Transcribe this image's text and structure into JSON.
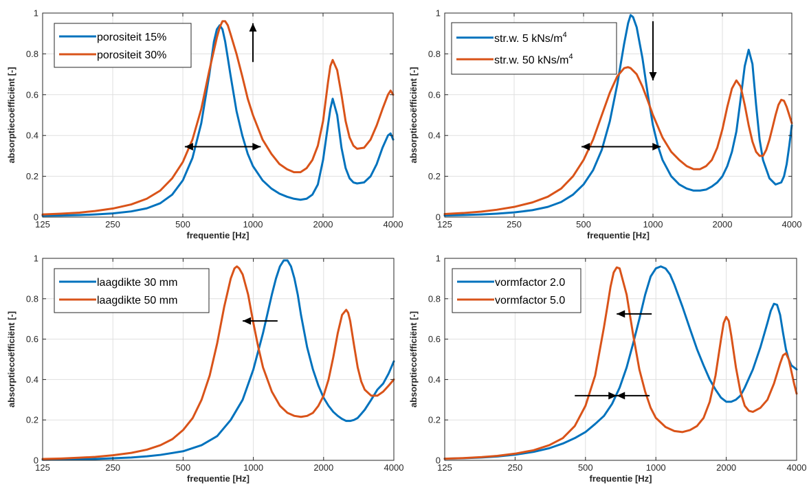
{
  "colors": {
    "blue": "#0072BD",
    "orange": "#D95319",
    "axis": "#262626",
    "grid": "#DFDFDF",
    "arrow": "#000000"
  },
  "chart_data": [
    {
      "type": "line",
      "xscale": "log",
      "xlim": [
        125,
        4000
      ],
      "ylim": [
        0,
        1
      ],
      "xticks": [
        "125",
        "250",
        "500",
        "1000",
        "2000",
        "4000"
      ],
      "xtick_values": [
        125,
        250,
        500,
        1000,
        2000,
        4000
      ],
      "yticks": [
        "0",
        "0.2",
        "0.4",
        "0.6",
        "0.8",
        "1"
      ],
      "ytick_values": [
        0,
        0.2,
        0.4,
        0.6,
        0.8,
        1
      ],
      "xlabel": "frequentie [Hz]",
      "ylabel": "absorptiecoëfficiënt [-]",
      "grid": true,
      "legend": "top-left",
      "series": [
        {
          "name": "porositeit 15%",
          "color": "blue",
          "x": [
            125,
            150,
            180,
            210,
            250,
            300,
            350,
            400,
            450,
            500,
            550,
            600,
            650,
            680,
            700,
            720,
            740,
            760,
            780,
            800,
            850,
            900,
            950,
            1000,
            1100,
            1200,
            1300,
            1400,
            1500,
            1600,
            1700,
            1800,
            1900,
            2000,
            2100,
            2150,
            2200,
            2300,
            2400,
            2500,
            2600,
            2700,
            2800,
            3000,
            3200,
            3400,
            3600,
            3800,
            3900,
            4000
          ],
          "y": [
            0.007,
            0.008,
            0.01,
            0.013,
            0.018,
            0.028,
            0.043,
            0.068,
            0.11,
            0.18,
            0.29,
            0.46,
            0.7,
            0.86,
            0.92,
            0.94,
            0.92,
            0.86,
            0.78,
            0.7,
            0.52,
            0.4,
            0.31,
            0.25,
            0.18,
            0.14,
            0.115,
            0.1,
            0.09,
            0.085,
            0.09,
            0.11,
            0.16,
            0.28,
            0.45,
            0.53,
            0.58,
            0.5,
            0.34,
            0.24,
            0.19,
            0.17,
            0.165,
            0.17,
            0.2,
            0.26,
            0.34,
            0.4,
            0.41,
            0.38
          ]
        },
        {
          "name": "porositeit 30%",
          "color": "orange",
          "x": [
            125,
            150,
            180,
            210,
            250,
            300,
            350,
            400,
            450,
            500,
            550,
            600,
            650,
            700,
            720,
            740,
            760,
            780,
            800,
            850,
            900,
            950,
            1000,
            1100,
            1200,
            1300,
            1400,
            1500,
            1600,
            1700,
            1800,
            1900,
            2000,
            2100,
            2150,
            2200,
            2300,
            2400,
            2500,
            2600,
            2700,
            2800,
            3000,
            3200,
            3400,
            3600,
            3800,
            3900,
            4000
          ],
          "y": [
            0.013,
            0.017,
            0.022,
            0.03,
            0.042,
            0.062,
            0.09,
            0.13,
            0.19,
            0.27,
            0.38,
            0.53,
            0.72,
            0.88,
            0.93,
            0.96,
            0.96,
            0.94,
            0.9,
            0.8,
            0.69,
            0.58,
            0.5,
            0.38,
            0.31,
            0.26,
            0.235,
            0.22,
            0.22,
            0.24,
            0.28,
            0.35,
            0.47,
            0.66,
            0.74,
            0.77,
            0.72,
            0.6,
            0.47,
            0.39,
            0.35,
            0.335,
            0.34,
            0.38,
            0.45,
            0.53,
            0.6,
            0.62,
            0.6
          ]
        }
      ],
      "arrows": [
        {
          "x1": 1000,
          "y1": 0.76,
          "x2": 1000,
          "y2": 0.95
        }
      ],
      "double_arrows": [
        {
          "x1": 510,
          "x2": 1080,
          "y": 0.345
        }
      ]
    },
    {
      "type": "line",
      "xscale": "log",
      "xlim": [
        125,
        4000
      ],
      "ylim": [
        0,
        1
      ],
      "xticks": [
        "125",
        "250",
        "500",
        "1000",
        "2000",
        "4000"
      ],
      "xtick_values": [
        125,
        250,
        500,
        1000,
        2000,
        4000
      ],
      "yticks": [
        "0",
        "0.2",
        "0.4",
        "0.6",
        "0.8",
        "1"
      ],
      "ytick_values": [
        0,
        0.2,
        0.4,
        0.6,
        0.8,
        1
      ],
      "xlabel": "frequentie [Hz]",
      "ylabel": "absorptiecoëfficiënt [-]",
      "grid": true,
      "legend": "top-left",
      "series": [
        {
          "name_parts": [
            "str.w. 5 kNs/m",
            "4"
          ],
          "color": "blue",
          "x": [
            125,
            150,
            180,
            210,
            250,
            300,
            350,
            400,
            450,
            500,
            550,
            600,
            650,
            700,
            750,
            780,
            800,
            820,
            850,
            900,
            950,
            1000,
            1050,
            1100,
            1200,
            1300,
            1400,
            1500,
            1600,
            1700,
            1800,
            1900,
            2000,
            2100,
            2200,
            2300,
            2400,
            2500,
            2600,
            2700,
            2800,
            2900,
            3000,
            3200,
            3400,
            3600,
            3700,
            3800,
            3900,
            4000
          ],
          "y": [
            0.008,
            0.01,
            0.013,
            0.017,
            0.023,
            0.034,
            0.05,
            0.074,
            0.11,
            0.16,
            0.23,
            0.33,
            0.47,
            0.65,
            0.85,
            0.95,
            0.99,
            0.98,
            0.93,
            0.78,
            0.6,
            0.45,
            0.35,
            0.28,
            0.2,
            0.16,
            0.14,
            0.13,
            0.13,
            0.135,
            0.15,
            0.17,
            0.2,
            0.25,
            0.32,
            0.42,
            0.58,
            0.74,
            0.82,
            0.75,
            0.55,
            0.38,
            0.28,
            0.19,
            0.16,
            0.17,
            0.2,
            0.26,
            0.35,
            0.45
          ]
        },
        {
          "name_parts": [
            "str.w. 50 kNs/m",
            "4"
          ],
          "color": "orange",
          "x": [
            125,
            150,
            180,
            210,
            250,
            300,
            350,
            400,
            450,
            500,
            550,
            600,
            650,
            700,
            750,
            780,
            800,
            850,
            900,
            950,
            1000,
            1100,
            1200,
            1300,
            1400,
            1500,
            1600,
            1700,
            1800,
            1900,
            2000,
            2100,
            2200,
            2300,
            2400,
            2500,
            2600,
            2700,
            2800,
            2900,
            3000,
            3100,
            3200,
            3300,
            3400,
            3500,
            3600,
            3700,
            3800,
            3900,
            4000
          ],
          "y": [
            0.015,
            0.02,
            0.027,
            0.036,
            0.05,
            0.072,
            0.1,
            0.14,
            0.2,
            0.28,
            0.38,
            0.5,
            0.61,
            0.69,
            0.73,
            0.735,
            0.73,
            0.7,
            0.64,
            0.57,
            0.5,
            0.39,
            0.32,
            0.28,
            0.25,
            0.235,
            0.235,
            0.25,
            0.28,
            0.34,
            0.43,
            0.54,
            0.63,
            0.67,
            0.64,
            0.55,
            0.45,
            0.37,
            0.32,
            0.3,
            0.3,
            0.33,
            0.38,
            0.44,
            0.5,
            0.55,
            0.575,
            0.57,
            0.54,
            0.5,
            0.46
          ]
        }
      ],
      "arrows": [
        {
          "x1": 1000,
          "y1": 0.96,
          "x2": 1000,
          "y2": 0.67
        }
      ],
      "double_arrows": [
        {
          "x1": 490,
          "x2": 1080,
          "y": 0.345
        }
      ]
    },
    {
      "type": "line",
      "xscale": "log",
      "xlim": [
        125,
        4000
      ],
      "ylim": [
        0,
        1
      ],
      "xticks": [
        "125",
        "250",
        "500",
        "1000",
        "2000",
        "4000"
      ],
      "xtick_values": [
        125,
        250,
        500,
        1000,
        2000,
        4000
      ],
      "yticks": [
        "0",
        "0.2",
        "0.4",
        "0.6",
        "0.8",
        "1"
      ],
      "ytick_values": [
        0,
        0.2,
        0.4,
        0.6,
        0.8,
        1
      ],
      "xlabel": "frequentie [Hz]",
      "ylabel": "absorptiecoëfficiënt [-]",
      "grid": true,
      "legend": "top-left",
      "series": [
        {
          "name": "laagdikte 30 mm",
          "color": "blue",
          "x": [
            125,
            150,
            180,
            210,
            250,
            300,
            350,
            400,
            500,
            600,
            700,
            800,
            900,
            1000,
            1100,
            1200,
            1250,
            1300,
            1350,
            1400,
            1450,
            1500,
            1550,
            1600,
            1700,
            1800,
            1900,
            2000,
            2100,
            2200,
            2300,
            2400,
            2500,
            2600,
            2700,
            2800,
            2900,
            3000,
            3200,
            3400,
            3600,
            3800,
            4000
          ],
          "y": [
            0.003,
            0.004,
            0.005,
            0.007,
            0.01,
            0.014,
            0.02,
            0.027,
            0.045,
            0.075,
            0.12,
            0.2,
            0.3,
            0.45,
            0.63,
            0.82,
            0.9,
            0.96,
            0.99,
            0.99,
            0.96,
            0.9,
            0.82,
            0.72,
            0.56,
            0.45,
            0.37,
            0.31,
            0.27,
            0.24,
            0.22,
            0.205,
            0.195,
            0.195,
            0.2,
            0.21,
            0.23,
            0.25,
            0.3,
            0.35,
            0.38,
            0.43,
            0.49
          ]
        },
        {
          "name": "laagdikte 50 mm",
          "color": "orange",
          "x": [
            125,
            150,
            180,
            210,
            250,
            300,
            350,
            400,
            450,
            500,
            550,
            600,
            650,
            700,
            750,
            800,
            830,
            850,
            870,
            900,
            950,
            1000,
            1050,
            1100,
            1200,
            1300,
            1400,
            1500,
            1600,
            1700,
            1800,
            1900,
            2000,
            2100,
            2200,
            2300,
            2400,
            2500,
            2550,
            2600,
            2700,
            2800,
            2900,
            3000,
            3200,
            3400,
            3600,
            3800,
            4000
          ],
          "y": [
            0.007,
            0.009,
            0.013,
            0.017,
            0.025,
            0.037,
            0.053,
            0.075,
            0.105,
            0.15,
            0.21,
            0.3,
            0.42,
            0.58,
            0.76,
            0.9,
            0.95,
            0.96,
            0.95,
            0.92,
            0.82,
            0.68,
            0.56,
            0.46,
            0.34,
            0.27,
            0.235,
            0.22,
            0.215,
            0.22,
            0.235,
            0.27,
            0.32,
            0.4,
            0.51,
            0.63,
            0.72,
            0.745,
            0.73,
            0.69,
            0.57,
            0.46,
            0.39,
            0.35,
            0.32,
            0.32,
            0.34,
            0.37,
            0.4
          ]
        }
      ],
      "arrows": [
        {
          "x1": 1270,
          "y1": 0.69,
          "x2": 900,
          "y2": 0.69
        }
      ],
      "double_arrows": []
    },
    {
      "type": "line",
      "xscale": "log",
      "xlim": [
        125,
        4000
      ],
      "ylim": [
        0,
        1
      ],
      "xticks": [
        "125",
        "250",
        "500",
        "1000",
        "2000",
        "4000"
      ],
      "xtick_values": [
        125,
        250,
        500,
        1000,
        2000,
        4000
      ],
      "yticks": [
        "0",
        "0.2",
        "0.4",
        "0.6",
        "0.8",
        "1"
      ],
      "ytick_values": [
        0,
        0.2,
        0.4,
        0.6,
        0.8,
        1
      ],
      "xlabel": "frequentie [Hz]",
      "ylabel": "absorptiecoëfficiënt [-]",
      "grid": true,
      "legend": "top-left",
      "series": [
        {
          "name": "vormfactor 2.0",
          "color": "blue",
          "x": [
            125,
            150,
            180,
            210,
            250,
            300,
            350,
            400,
            450,
            500,
            550,
            600,
            650,
            700,
            750,
            800,
            850,
            900,
            950,
            1000,
            1050,
            1100,
            1150,
            1200,
            1300,
            1400,
            1500,
            1600,
            1700,
            1800,
            1900,
            2000,
            2100,
            2200,
            2300,
            2400,
            2600,
            2800,
            3000,
            3100,
            3200,
            3300,
            3400,
            3500,
            3600,
            3700,
            3800,
            3900,
            4000
          ],
          "y": [
            0.008,
            0.01,
            0.014,
            0.019,
            0.028,
            0.042,
            0.06,
            0.083,
            0.11,
            0.14,
            0.18,
            0.22,
            0.28,
            0.36,
            0.46,
            0.58,
            0.7,
            0.82,
            0.91,
            0.95,
            0.96,
            0.95,
            0.92,
            0.87,
            0.76,
            0.65,
            0.55,
            0.47,
            0.4,
            0.35,
            0.31,
            0.29,
            0.29,
            0.3,
            0.32,
            0.36,
            0.45,
            0.56,
            0.68,
            0.74,
            0.775,
            0.77,
            0.72,
            0.63,
            0.55,
            0.5,
            0.47,
            0.46,
            0.45
          ]
        },
        {
          "name": "vormfactor 5.0",
          "color": "orange",
          "x": [
            125,
            150,
            180,
            210,
            250,
            300,
            350,
            400,
            450,
            500,
            550,
            600,
            620,
            640,
            660,
            680,
            700,
            750,
            800,
            850,
            900,
            950,
            1000,
            1100,
            1200,
            1300,
            1400,
            1500,
            1600,
            1700,
            1800,
            1900,
            1950,
            2000,
            2050,
            2100,
            2200,
            2300,
            2400,
            2500,
            2600,
            2800,
            3000,
            3200,
            3400,
            3500,
            3600,
            3700,
            3800,
            3900,
            4000
          ],
          "y": [
            0.008,
            0.011,
            0.016,
            0.022,
            0.033,
            0.05,
            0.075,
            0.11,
            0.17,
            0.27,
            0.42,
            0.66,
            0.76,
            0.86,
            0.93,
            0.955,
            0.95,
            0.82,
            0.62,
            0.45,
            0.34,
            0.26,
            0.21,
            0.165,
            0.145,
            0.14,
            0.15,
            0.17,
            0.21,
            0.29,
            0.42,
            0.6,
            0.68,
            0.71,
            0.69,
            0.62,
            0.46,
            0.34,
            0.27,
            0.245,
            0.24,
            0.26,
            0.3,
            0.38,
            0.48,
            0.52,
            0.53,
            0.5,
            0.44,
            0.38,
            0.33
          ]
        }
      ],
      "arrows": [
        {
          "x1": 960,
          "y1": 0.725,
          "x2": 680,
          "y2": 0.725
        }
      ],
      "opposing_arrows": [
        {
          "x1": 450,
          "x2": 940,
          "y": 0.32,
          "mid": 680
        }
      ]
    }
  ]
}
